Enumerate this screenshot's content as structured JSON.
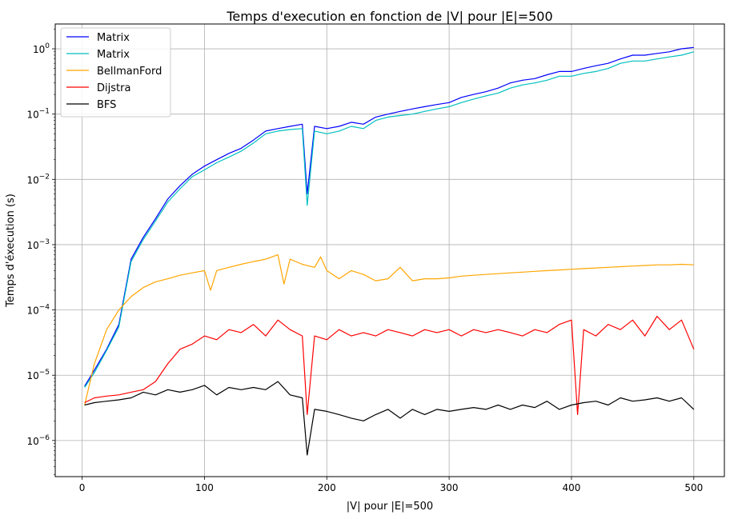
{
  "chart_data": {
    "type": "line",
    "title": "Temps d'execution en fonction de |V| pour |E|=500",
    "xlabel": "|V| pour |E|=500",
    "ylabel": "Temps d'éxecution (s)",
    "xscale": "linear",
    "yscale": "log",
    "xlim": [
      -22,
      525
    ],
    "ylim": [
      2.8e-07,
      2.4
    ],
    "x_ticks": [
      0,
      100,
      200,
      300,
      400,
      500
    ],
    "x_tick_labels": [
      "0",
      "100",
      "200",
      "300",
      "400",
      "500"
    ],
    "y_ticks": [
      1e-06,
      1e-05,
      0.0001,
      0.001,
      0.01,
      0.1,
      1
    ],
    "y_tick_labels": [
      "10",
      "10",
      "10",
      "10",
      "10",
      "10",
      "10"
    ],
    "y_tick_exponents": [
      "−6",
      "−5",
      "−4",
      "−3",
      "−2",
      "−1",
      "0"
    ],
    "grid": true,
    "legend_position": "top-left",
    "series": [
      {
        "name": "Matrix",
        "color": "#0000ff",
        "x": [
          2,
          10,
          20,
          30,
          40,
          50,
          60,
          70,
          80,
          90,
          100,
          110,
          120,
          130,
          140,
          150,
          160,
          170,
          180,
          184,
          190,
          200,
          210,
          220,
          230,
          240,
          250,
          260,
          270,
          280,
          290,
          300,
          310,
          320,
          330,
          340,
          350,
          360,
          370,
          380,
          390,
          400,
          410,
          420,
          430,
          440,
          450,
          460,
          470,
          480,
          490,
          500
        ],
        "y": [
          6.8e-06,
          1.2e-05,
          2.5e-05,
          6e-05,
          0.0006,
          0.0013,
          0.0025,
          0.005,
          0.008,
          0.012,
          0.016,
          0.02,
          0.025,
          0.03,
          0.04,
          0.055,
          0.06,
          0.065,
          0.07,
          0.006,
          0.065,
          0.06,
          0.065,
          0.075,
          0.07,
          0.09,
          0.1,
          0.11,
          0.12,
          0.13,
          0.14,
          0.15,
          0.18,
          0.2,
          0.22,
          0.25,
          0.3,
          0.33,
          0.35,
          0.4,
          0.45,
          0.45,
          0.5,
          0.55,
          0.6,
          0.7,
          0.8,
          0.8,
          0.85,
          0.9,
          1.0,
          1.05
        ]
      },
      {
        "name": "Matrix",
        "color": "#00bfbf",
        "x": [
          2,
          10,
          20,
          30,
          40,
          50,
          60,
          70,
          80,
          90,
          100,
          110,
          120,
          130,
          140,
          150,
          160,
          170,
          180,
          184,
          190,
          200,
          210,
          220,
          230,
          240,
          250,
          260,
          270,
          280,
          290,
          300,
          310,
          320,
          330,
          340,
          350,
          360,
          370,
          380,
          390,
          400,
          410,
          420,
          430,
          440,
          450,
          460,
          470,
          480,
          490,
          500
        ],
        "y": [
          6.5e-06,
          1.1e-05,
          2.4e-05,
          5.5e-05,
          0.00055,
          0.0012,
          0.0023,
          0.0045,
          0.0072,
          0.011,
          0.014,
          0.018,
          0.022,
          0.027,
          0.036,
          0.05,
          0.055,
          0.058,
          0.06,
          0.004,
          0.055,
          0.05,
          0.055,
          0.065,
          0.06,
          0.08,
          0.09,
          0.095,
          0.1,
          0.11,
          0.12,
          0.13,
          0.15,
          0.17,
          0.19,
          0.21,
          0.25,
          0.28,
          0.3,
          0.33,
          0.38,
          0.38,
          0.42,
          0.45,
          0.5,
          0.6,
          0.65,
          0.65,
          0.7,
          0.75,
          0.8,
          0.9
        ]
      },
      {
        "name": "BellmanFord",
        "color": "#ffa500",
        "x": [
          2,
          10,
          20,
          30,
          40,
          50,
          60,
          70,
          80,
          90,
          100,
          105,
          110,
          120,
          130,
          140,
          150,
          160,
          165,
          170,
          180,
          190,
          195,
          200,
          210,
          220,
          230,
          240,
          250,
          260,
          270,
          280,
          290,
          300,
          310,
          320,
          330,
          340,
          350,
          360,
          370,
          380,
          390,
          400,
          410,
          420,
          430,
          440,
          450,
          460,
          470,
          480,
          490,
          500
        ],
        "y": [
          3.5e-06,
          1.5e-05,
          5e-05,
          0.0001,
          0.00016,
          0.00022,
          0.00027,
          0.0003,
          0.00034,
          0.00037,
          0.0004,
          0.0002,
          0.0004,
          0.00045,
          0.0005,
          0.00055,
          0.0006,
          0.0007,
          0.00025,
          0.0006,
          0.0005,
          0.00045,
          0.00065,
          0.0004,
          0.0003,
          0.0004,
          0.00035,
          0.00028,
          0.0003,
          0.00045,
          0.00028,
          0.0003,
          0.0003,
          0.00031,
          0.00033,
          0.00034,
          0.00035,
          0.00036,
          0.00037,
          0.00038,
          0.00039,
          0.0004,
          0.00041,
          0.00042,
          0.00043,
          0.00044,
          0.00045,
          0.00046,
          0.00047,
          0.00048,
          0.00049,
          0.00049,
          0.0005,
          0.00049
        ]
      },
      {
        "name": "Dijstra",
        "color": "#ff0000",
        "x": [
          2,
          10,
          20,
          30,
          40,
          50,
          60,
          70,
          80,
          90,
          100,
          110,
          120,
          130,
          140,
          150,
          160,
          170,
          180,
          184,
          190,
          200,
          210,
          220,
          230,
          240,
          250,
          260,
          270,
          280,
          290,
          300,
          310,
          320,
          330,
          340,
          350,
          360,
          370,
          380,
          390,
          400,
          405,
          410,
          420,
          430,
          440,
          450,
          460,
          470,
          480,
          490,
          500
        ],
        "y": [
          3.8e-06,
          4.5e-06,
          4.8e-06,
          5e-06,
          5.5e-06,
          6e-06,
          8e-06,
          1.5e-05,
          2.5e-05,
          3e-05,
          4e-05,
          3.5e-05,
          5e-05,
          4.5e-05,
          6e-05,
          4e-05,
          7e-05,
          5e-05,
          4e-05,
          2.5e-06,
          4e-05,
          3.5e-05,
          5e-05,
          4e-05,
          4.5e-05,
          4e-05,
          5e-05,
          4.5e-05,
          4e-05,
          5e-05,
          4.5e-05,
          5e-05,
          4e-05,
          5e-05,
          4.5e-05,
          5e-05,
          4.5e-05,
          4e-05,
          5e-05,
          4.5e-05,
          6e-05,
          7e-05,
          2.5e-06,
          5e-05,
          4e-05,
          6e-05,
          5e-05,
          7e-05,
          4e-05,
          8e-05,
          5e-05,
          7e-05,
          2.5e-05
        ]
      },
      {
        "name": "BFS",
        "color": "#000000",
        "x": [
          2,
          10,
          20,
          30,
          40,
          50,
          60,
          70,
          80,
          90,
          100,
          110,
          120,
          130,
          140,
          150,
          160,
          170,
          180,
          184,
          190,
          200,
          210,
          220,
          230,
          240,
          250,
          260,
          270,
          280,
          290,
          300,
          310,
          320,
          330,
          340,
          350,
          360,
          370,
          380,
          390,
          400,
          410,
          420,
          430,
          440,
          450,
          460,
          470,
          480,
          490,
          500
        ],
        "y": [
          3.5e-06,
          3.8e-06,
          4e-06,
          4.2e-06,
          4.5e-06,
          5.5e-06,
          5e-06,
          6e-06,
          5.5e-06,
          6e-06,
          7e-06,
          5e-06,
          6.5e-06,
          6e-06,
          6.5e-06,
          6e-06,
          8e-06,
          5e-06,
          4.5e-06,
          6e-07,
          3e-06,
          2.8e-06,
          2.5e-06,
          2.2e-06,
          2e-06,
          2.5e-06,
          3e-06,
          2.2e-06,
          3e-06,
          2.5e-06,
          3e-06,
          2.8e-06,
          3e-06,
          3.2e-06,
          3e-06,
          3.5e-06,
          3e-06,
          3.5e-06,
          3.2e-06,
          4e-06,
          3e-06,
          3.5e-06,
          3.8e-06,
          4e-06,
          3.5e-06,
          4.5e-06,
          4e-06,
          4.2e-06,
          4.5e-06,
          4e-06,
          4.5e-06,
          3e-06
        ]
      }
    ]
  }
}
